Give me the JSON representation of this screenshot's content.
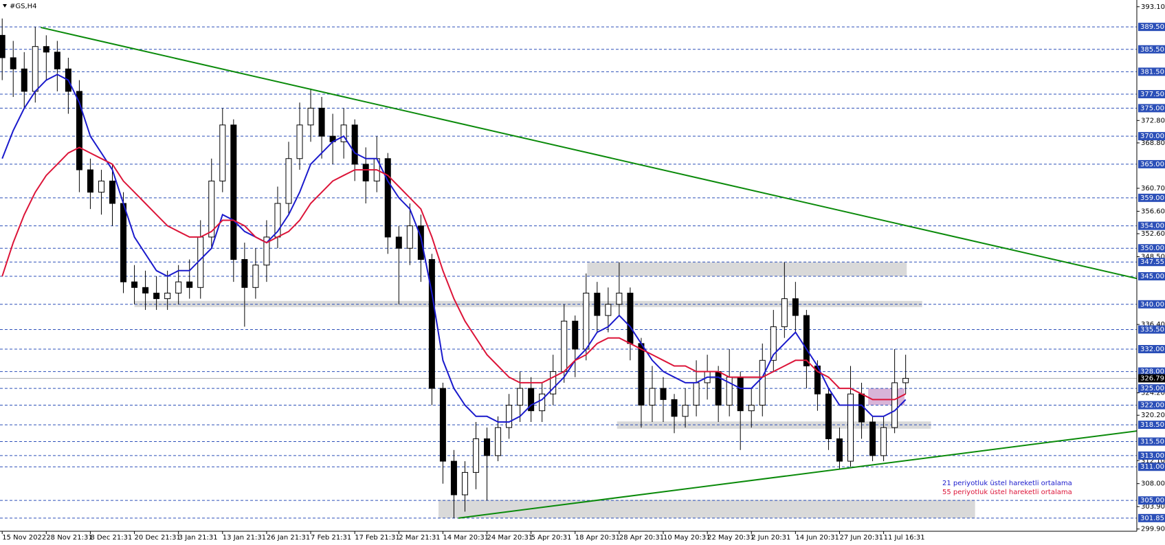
{
  "chart_data": {
    "type": "candlestick",
    "symbol": "#GS,H4",
    "categories": [
      "15 Nov 2022",
      null,
      null,
      null,
      "28 Nov 21:31",
      null,
      null,
      null,
      "8 Dec 21:31",
      null,
      null,
      null,
      "20 Dec 21:31",
      null,
      null,
      null,
      "3 Jan 21:31",
      null,
      null,
      null,
      "13 Jan 21:31",
      null,
      null,
      null,
      "26 Jan 21:31",
      null,
      null,
      null,
      "7 Feb 21:31",
      null,
      null,
      null,
      "17 Feb 21:31",
      null,
      null,
      null,
      "2 Mar 21:31",
      null,
      null,
      null,
      "14 Mar 20:31",
      null,
      null,
      null,
      "24 Mar 20:31",
      null,
      null,
      null,
      "5 Apr 20:31",
      null,
      null,
      null,
      "18 Apr 20:31",
      null,
      null,
      null,
      "28 Apr 20:31",
      null,
      null,
      null,
      "10 May 20:31",
      null,
      null,
      null,
      "22 May 20:31",
      null,
      null,
      null,
      "2 Jun 20:31",
      null,
      null,
      null,
      "14 Jun 20:31",
      null,
      null,
      null,
      "27 Jun 20:31",
      null,
      null,
      null,
      "11 Jul 16:31",
      null,
      null
    ],
    "open": [
      388,
      384,
      382,
      378,
      386,
      385,
      382,
      378,
      364,
      360,
      362,
      358,
      344,
      343,
      342,
      341,
      342,
      344,
      343,
      352,
      362,
      372,
      348,
      343,
      347,
      352,
      358,
      366,
      372,
      375,
      370,
      369,
      372,
      365,
      362,
      366,
      352,
      350,
      354,
      348,
      325,
      312,
      306,
      310,
      316,
      313,
      318,
      322,
      325,
      321,
      324,
      328,
      337,
      332,
      342,
      338,
      340,
      342,
      333,
      322,
      325,
      323,
      320,
      322,
      326,
      328,
      322,
      327,
      321,
      322,
      330,
      336,
      341,
      338,
      329,
      324,
      316,
      312,
      324,
      319,
      313,
      318,
      326
    ],
    "high": [
      391,
      387,
      385,
      389.5,
      388,
      387,
      384,
      380,
      366,
      364,
      365,
      360,
      347,
      346,
      345,
      346,
      347,
      348,
      355,
      366,
      375,
      373,
      351,
      350,
      355,
      361,
      369,
      376,
      378.5,
      377,
      374,
      375,
      373,
      368,
      370,
      367,
      354,
      358,
      356,
      349,
      326,
      314,
      312,
      319,
      318,
      320,
      324,
      328,
      327,
      326,
      331,
      340,
      338,
      345.5,
      344,
      343,
      347.5,
      343,
      334,
      329,
      327,
      324,
      325,
      330,
      331,
      329,
      332,
      328,
      325,
      333,
      339,
      347.5,
      344,
      339,
      330,
      325,
      318,
      329,
      326,
      320,
      320,
      332,
      331
    ],
    "low": [
      380,
      377,
      375,
      376,
      380,
      378,
      374,
      360,
      357,
      356,
      354,
      342,
      340,
      339,
      339,
      339,
      340,
      341,
      341,
      350,
      360,
      344,
      336,
      341,
      344,
      350,
      356,
      364,
      369,
      366,
      365,
      366,
      362,
      358,
      360,
      349,
      340,
      347,
      344,
      322,
      308,
      301.85,
      303,
      307,
      305,
      312,
      316,
      319,
      319,
      319,
      322,
      326,
      327,
      330,
      335,
      335,
      338,
      330,
      318,
      319,
      319,
      317,
      318,
      320,
      323,
      319,
      320,
      314,
      318,
      320,
      328,
      334,
      335,
      325,
      321,
      314,
      310.5,
      311,
      316,
      312,
      312,
      317,
      324
    ],
    "close": [
      384,
      382,
      378,
      386,
      385,
      382,
      378,
      364,
      360,
      362,
      358,
      344,
      343,
      342,
      341,
      342,
      344,
      343,
      352,
      362,
      372,
      348,
      343,
      347,
      352,
      358,
      366,
      372,
      375,
      370,
      369,
      372,
      365,
      362,
      366,
      352,
      350,
      354,
      348,
      325,
      312,
      306,
      310,
      316,
      313,
      318,
      322,
      325,
      321,
      324,
      328,
      337,
      332,
      342,
      338,
      340,
      342,
      333,
      322,
      325,
      323,
      320,
      322,
      326,
      328,
      322,
      327,
      321,
      322,
      330,
      336,
      341,
      338,
      329,
      324,
      316,
      312,
      324,
      319,
      313,
      318,
      326,
      326.79
    ],
    "up_color": "#ffffff",
    "down_color": "#000000",
    "series": [
      {
        "name": "21 periyotluk üstel hareketli ortalama",
        "color": "#1a1acc",
        "values": [
          366,
          371,
          375,
          378,
          380,
          381,
          380,
          376,
          370,
          367,
          364,
          358,
          352,
          349,
          346,
          345,
          346,
          346,
          348,
          350,
          356,
          355,
          353,
          352,
          351,
          353,
          356,
          360,
          365,
          367,
          369,
          370,
          367,
          366,
          366,
          362,
          359,
          357,
          352,
          342,
          330,
          325,
          322,
          320,
          320,
          319,
          319,
          320,
          322,
          323,
          325,
          327,
          330,
          332,
          335,
          336,
          338,
          336,
          333,
          330,
          328,
          327,
          326,
          326,
          327,
          327,
          326,
          325,
          325,
          327,
          331,
          333,
          335,
          332,
          329,
          325,
          322,
          322,
          322,
          320,
          320,
          321,
          323
        ]
      },
      {
        "name": "55 periyotluk üstel hareketli ortalama",
        "color": "#dc1438",
        "values": [
          345,
          351,
          356,
          360,
          363,
          365,
          367,
          368,
          367,
          366,
          365,
          362,
          360,
          358,
          356,
          354,
          353,
          352,
          352,
          353,
          355,
          355,
          354,
          352,
          351,
          352,
          353,
          355,
          358,
          360,
          362,
          363,
          364,
          364,
          364,
          363,
          361,
          359,
          357,
          352,
          346,
          341,
          337,
          334,
          331,
          329,
          327,
          326,
          326,
          326,
          327,
          328,
          330,
          331,
          333,
          334,
          334,
          333,
          332,
          331,
          330,
          329,
          329,
          328,
          328,
          328,
          327,
          327,
          327,
          327,
          328,
          329,
          330,
          330,
          328,
          327,
          325,
          325,
          324,
          323,
          323,
          323,
          324
        ]
      }
    ],
    "ylim": [
      299.5,
      394.3
    ],
    "yticks": [
      {
        "value": 393.1,
        "label": "393.10"
      },
      {
        "value": 372.8,
        "label": "372.80"
      },
      {
        "value": 368.8,
        "label": "368.80"
      },
      {
        "value": 360.7,
        "label": "360.70"
      },
      {
        "value": 356.6,
        "label": "356.60"
      },
      {
        "value": 352.6,
        "label": "352.60"
      },
      {
        "value": 348.5,
        "label": "348.50"
      },
      {
        "value": 336.4,
        "label": "336.40"
      },
      {
        "value": 324.2,
        "label": "324.20"
      },
      {
        "value": 320.2,
        "label": "320.20"
      },
      {
        "value": 312.1,
        "label": "312.10"
      },
      {
        "value": 308,
        "label": "308.00"
      },
      {
        "value": 303.9,
        "label": "303.90"
      },
      {
        "value": 299.9,
        "label": "299.90"
      }
    ],
    "levels": [
      {
        "value": 389.5,
        "label": "389.50"
      },
      {
        "value": 385.5,
        "label": "385.50"
      },
      {
        "value": 381.5,
        "label": "381.50"
      },
      {
        "value": 377.5,
        "label": "377.50"
      },
      {
        "value": 375,
        "label": "375.00"
      },
      {
        "value": 370,
        "label": "370.00"
      },
      {
        "value": 365,
        "label": "365.00"
      },
      {
        "value": 359,
        "label": "359.00"
      },
      {
        "value": 354,
        "label": "354.00"
      },
      {
        "value": 350,
        "label": "350.00"
      },
      {
        "value": 347.55,
        "label": "347.55"
      },
      {
        "value": 345,
        "label": "345.00"
      },
      {
        "value": 340,
        "label": "340.00"
      },
      {
        "value": 335.5,
        "label": "335.50"
      },
      {
        "value": 332,
        "label": "332.00"
      },
      {
        "value": 328,
        "label": "328.00"
      },
      {
        "value": 325,
        "label": "325.00"
      },
      {
        "value": 322,
        "label": "322.00"
      },
      {
        "value": 318.5,
        "label": "318.50"
      },
      {
        "value": 315.5,
        "label": "315.50"
      },
      {
        "value": 313,
        "label": "313.00"
      },
      {
        "value": 311,
        "label": "311.00"
      },
      {
        "value": 305,
        "label": "305.00"
      },
      {
        "value": 301.85,
        "label": "301.85"
      }
    ],
    "level_color": "#2b4fb8",
    "current_price": {
      "value": 326.79,
      "label": "326.79"
    },
    "trendline_color": "#0a8a0a",
    "trendlines": [
      {
        "points": [
          [
            3.5,
            389.4
          ],
          [
            103,
            344.6
          ]
        ]
      },
      {
        "points": [
          [
            41.4,
            301.85
          ],
          [
            103,
            317.4
          ]
        ]
      }
    ],
    "zones": [
      {
        "x": [
          12,
          83.5
        ],
        "y": [
          339.5,
          340.6
        ],
        "color": "#d9d9d9"
      },
      {
        "x": [
          53.1,
          82.1
        ],
        "y": [
          345,
          347.5
        ],
        "color": "#d9d9d9"
      },
      {
        "x": [
          55.8,
          84.3
        ],
        "y": [
          317.8,
          319.1
        ],
        "color": "#d9d9d9"
      },
      {
        "x": [
          39.6,
          88.3
        ],
        "y": [
          301.85,
          305.1
        ],
        "color": "#d9d9d9"
      },
      {
        "x": [
          78.6,
          81.9
        ],
        "y": [
          322,
          325
        ],
        "color": "#d8b4d8"
      }
    ]
  }
}
